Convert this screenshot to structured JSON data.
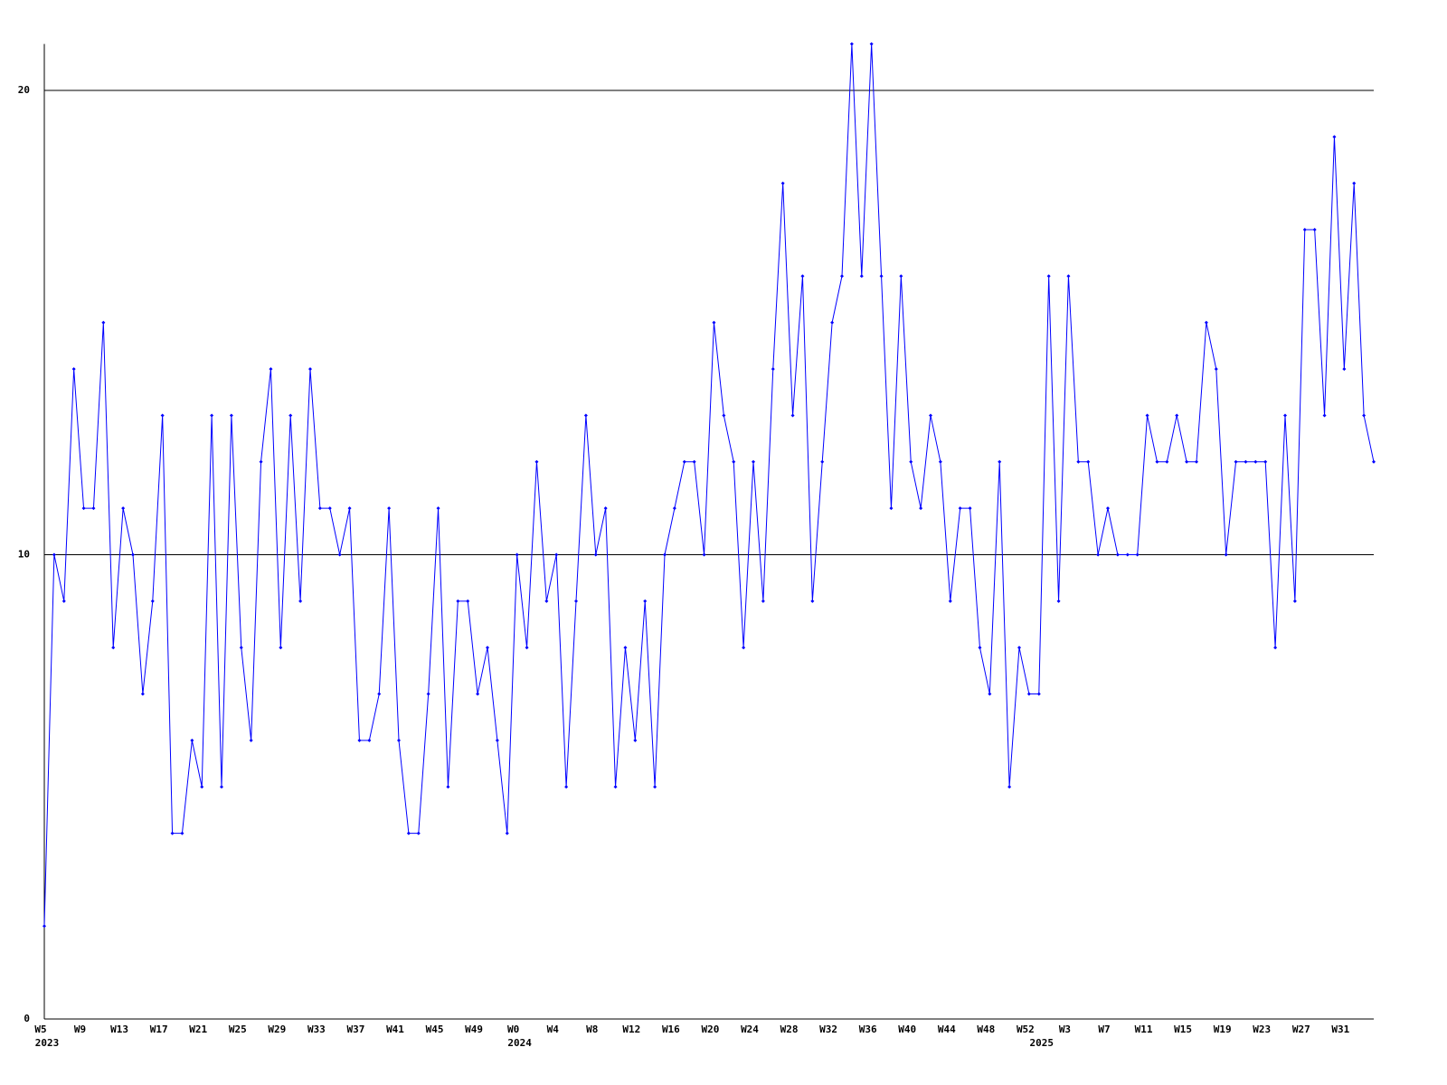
{
  "chart_data": {
    "type": "line",
    "categories": [
      "W5",
      null,
      null,
      null,
      "W9",
      null,
      null,
      null,
      "W13",
      null,
      null,
      null,
      "W17",
      null,
      null,
      null,
      "W21",
      null,
      null,
      null,
      "W25",
      null,
      null,
      null,
      "W29",
      null,
      null,
      null,
      "W33",
      null,
      null,
      null,
      "W37",
      null,
      null,
      null,
      "W41",
      null,
      null,
      null,
      "W45",
      null,
      null,
      null,
      "W49",
      null,
      null,
      null,
      "W0",
      null,
      null,
      null,
      "W4",
      null,
      null,
      null,
      "W8",
      null,
      null,
      null,
      "W12",
      null,
      null,
      null,
      "W16",
      null,
      null,
      null,
      "W20",
      null,
      null,
      null,
      "W24",
      null,
      null,
      null,
      "W28",
      null,
      null,
      null,
      "W32",
      null,
      null,
      null,
      "W36",
      null,
      null,
      null,
      "W40",
      null,
      null,
      null,
      "W44",
      null,
      null,
      null,
      "W48",
      null,
      null,
      null,
      "W52",
      null,
      null,
      null,
      "W3",
      null,
      null,
      null,
      "W7",
      null,
      null,
      null,
      "W11",
      null,
      null,
      null,
      "W15",
      null,
      null,
      null,
      "W19",
      null,
      null,
      null,
      "W23",
      null,
      null,
      null,
      "W27",
      null,
      null,
      null,
      "W31",
      null,
      null,
      null
    ],
    "years": [
      "2023",
      null,
      null,
      null,
      null,
      null,
      null,
      null,
      null,
      null,
      null,
      null,
      null,
      null,
      null,
      null,
      null,
      null,
      null,
      null,
      null,
      null,
      null,
      null,
      null,
      null,
      null,
      null,
      null,
      null,
      null,
      null,
      null,
      null,
      null,
      null,
      null,
      null,
      null,
      null,
      null,
      null,
      null,
      null,
      null,
      null,
      null,
      null,
      "2024",
      null,
      null,
      null,
      null,
      null,
      null,
      null,
      null,
      null,
      null,
      null,
      null,
      null,
      null,
      null,
      null,
      null,
      null,
      null,
      null,
      null,
      null,
      null,
      null,
      null,
      null,
      null,
      null,
      null,
      null,
      null,
      null,
      null,
      null,
      null,
      null,
      null,
      null,
      null,
      null,
      null,
      null,
      null,
      null,
      null,
      null,
      null,
      null,
      null,
      null,
      null,
      null,
      "2025",
      null,
      null,
      null,
      null,
      null,
      null,
      null,
      null,
      null,
      null,
      null,
      null,
      null,
      null,
      null,
      null,
      null,
      null,
      null,
      null,
      null,
      null,
      null,
      null,
      null,
      null,
      null,
      null,
      null,
      null,
      null,
      null,
      null,
      null
    ],
    "series": [
      {
        "color": "#0000ff",
        "values": [
          2,
          10,
          9,
          14,
          11,
          11,
          15,
          8,
          11,
          10,
          7,
          9,
          13,
          4,
          4,
          6,
          5,
          13,
          5,
          13,
          8,
          6,
          12,
          14,
          8,
          13,
          9,
          14,
          11,
          11,
          10,
          11,
          6,
          6,
          7,
          11,
          6,
          4,
          4,
          7,
          11,
          5,
          9,
          9,
          7,
          8,
          6,
          4,
          10,
          8,
          12,
          9,
          10,
          5,
          9,
          13,
          10,
          11,
          5,
          8,
          6,
          9,
          5,
          10,
          11,
          12,
          12,
          10,
          15,
          13,
          12,
          8,
          12,
          9,
          14,
          18,
          13,
          16,
          9,
          12,
          15,
          16,
          21,
          16,
          21,
          16,
          11,
          16,
          12,
          11,
          13,
          12,
          9,
          11,
          11,
          8,
          7,
          12,
          5,
          8,
          7,
          7,
          16,
          9,
          16,
          12,
          12,
          10,
          11,
          10,
          10,
          10,
          13,
          12,
          12,
          13,
          12,
          12,
          15,
          14,
          10,
          12,
          12,
          12,
          12,
          8,
          13,
          9,
          17,
          17,
          13,
          19,
          14,
          18,
          13,
          12
        ]
      }
    ],
    "ylim": [
      0,
      21
    ],
    "yticks": [
      0,
      10,
      20
    ],
    "grid": true
  }
}
